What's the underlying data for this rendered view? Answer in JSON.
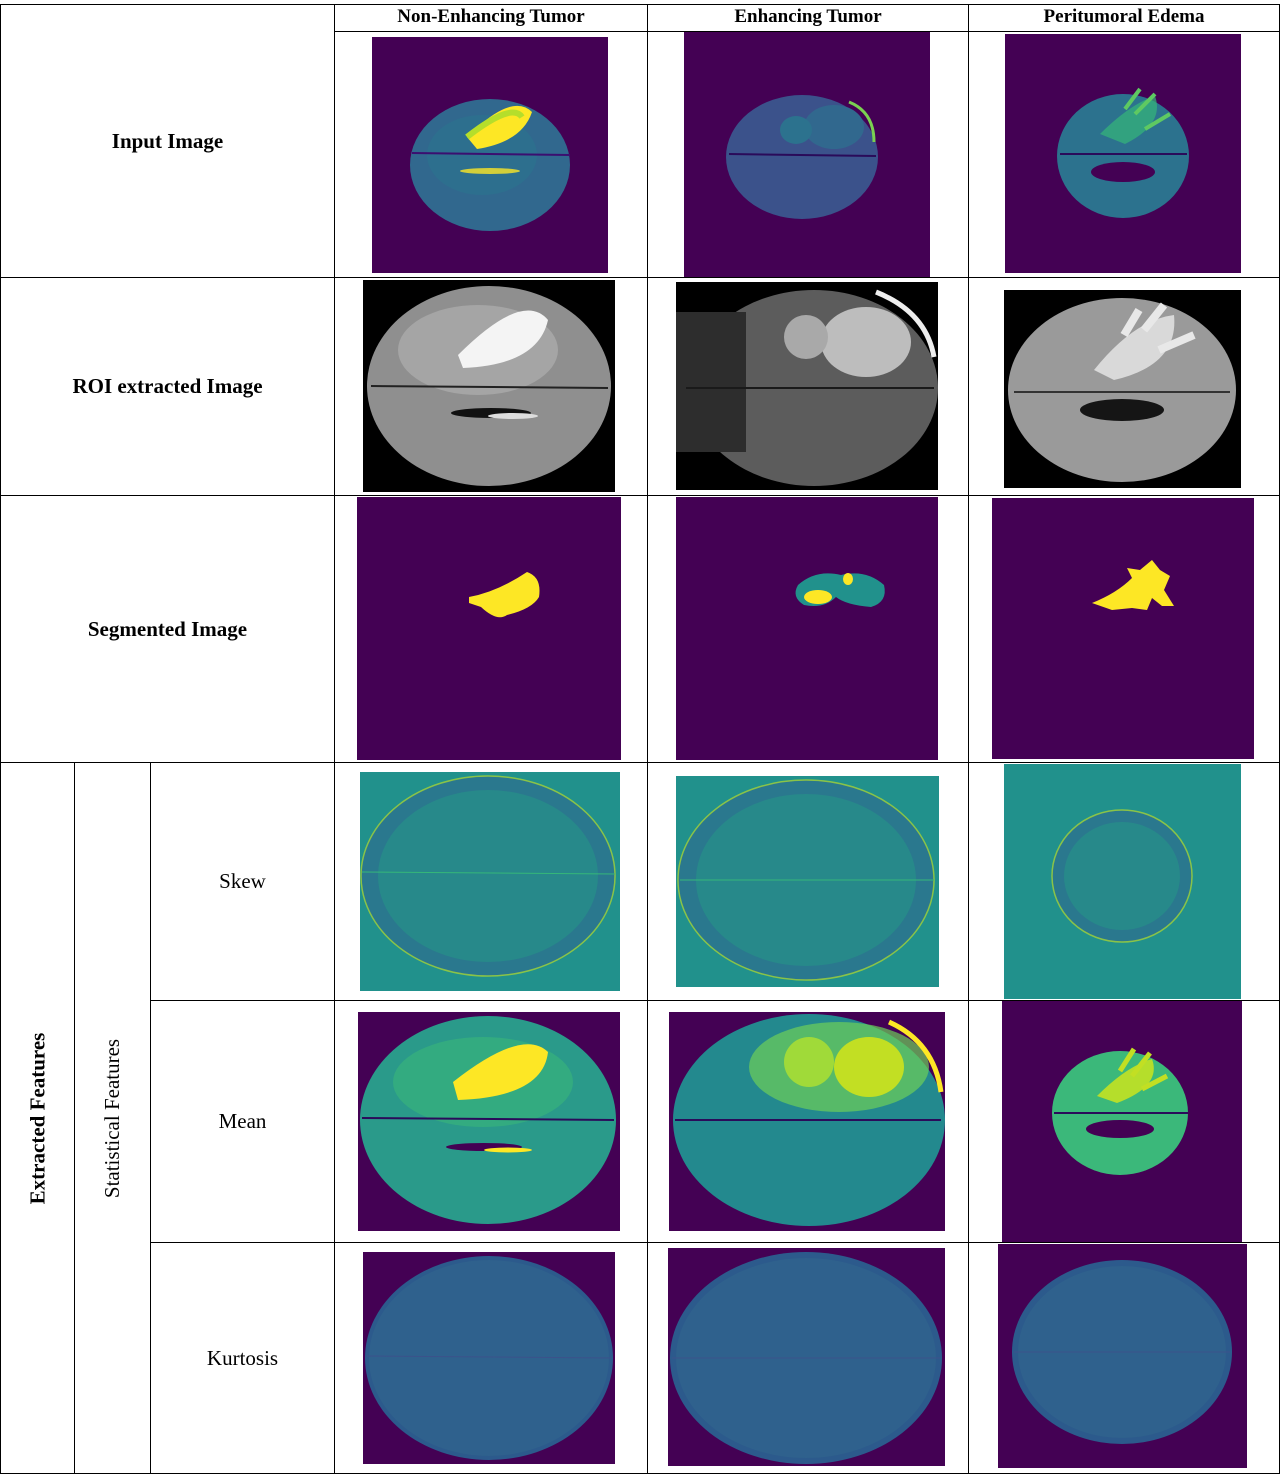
{
  "columns": [
    "Non-Enhancing Tumor",
    "Enhancing Tumor",
    "Peritumoral Edema"
  ],
  "rows": {
    "input": "Input Image",
    "roi": "ROI extracted Image",
    "segmented": "Segmented Image"
  },
  "extracted_features_label": "Extracted Features",
  "statistical_features_label": "Statistical Features",
  "features": [
    "Skew",
    "Mean",
    "Kurtosis"
  ],
  "colors": {
    "viridis_background": "#440154",
    "viridis_blue": "#31688e",
    "viridis_teal": "#21918c",
    "viridis_green": "#35b779",
    "viridis_yellow": "#fde725",
    "grayscale_background": "#000000"
  }
}
